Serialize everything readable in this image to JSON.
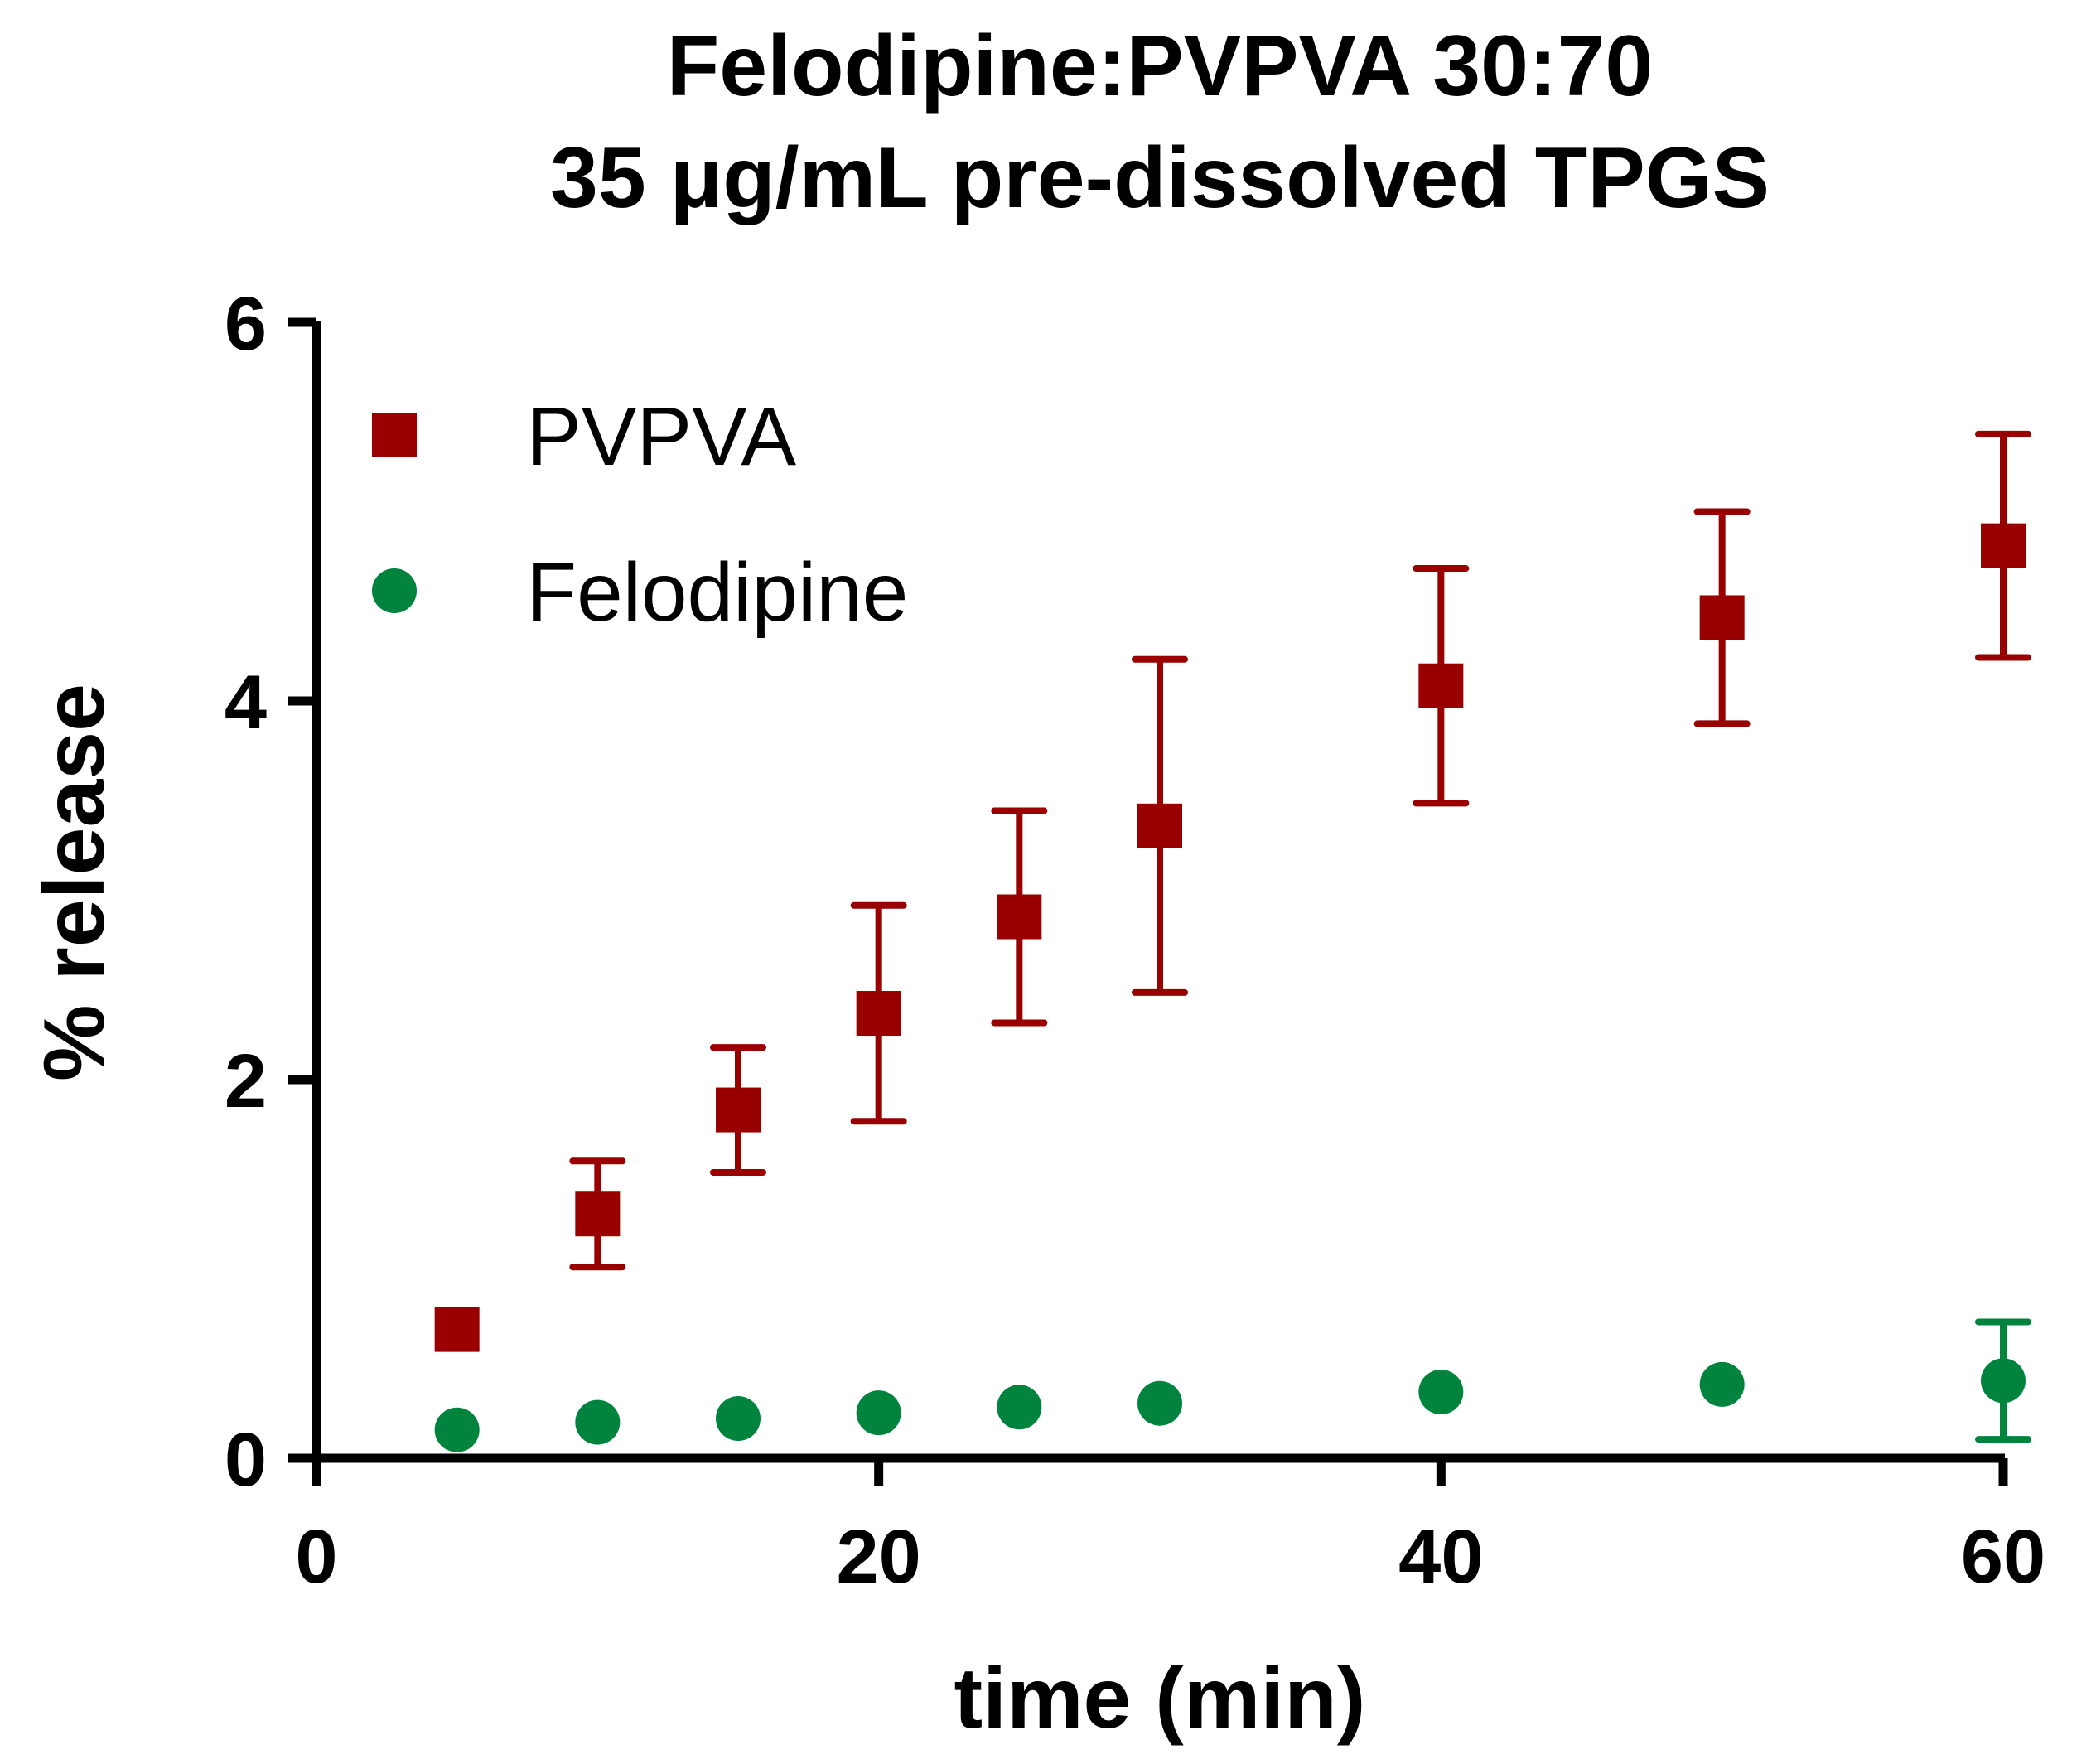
{
  "chart_data": {
    "type": "scatter",
    "title": [
      "Felodipine:PVPVA 30:70",
      "35 μg/mL pre-dissolved TPGS"
    ],
    "xlabel": "time (min)",
    "ylabel": "% release",
    "xlim": [
      0,
      60
    ],
    "ylim": [
      0,
      6
    ],
    "xticks": [
      0,
      20,
      40,
      60
    ],
    "yticks": [
      0,
      2,
      4,
      6
    ],
    "grid": false,
    "legend_position": "top-left",
    "series": [
      {
        "name": "PVPVA",
        "marker": "square",
        "color": "#990000",
        "x": [
          5,
          10,
          15,
          20,
          25,
          30,
          40,
          50,
          60
        ],
        "y": [
          0.68,
          1.29,
          1.84,
          2.35,
          2.86,
          3.34,
          4.08,
          4.44,
          4.82
        ],
        "error": [
          0,
          0.28,
          0.33,
          0.57,
          0.56,
          0.88,
          0.62,
          0.56,
          0.59
        ]
      },
      {
        "name": "Felodipine",
        "marker": "circle",
        "color": "#00843d",
        "x": [
          5,
          10,
          15,
          20,
          25,
          30,
          40,
          50,
          60
        ],
        "y": [
          0.15,
          0.19,
          0.21,
          0.24,
          0.27,
          0.29,
          0.35,
          0.39,
          0.41
        ],
        "error": [
          0,
          0,
          0,
          0,
          0,
          0,
          0,
          0,
          0.31
        ]
      }
    ]
  }
}
